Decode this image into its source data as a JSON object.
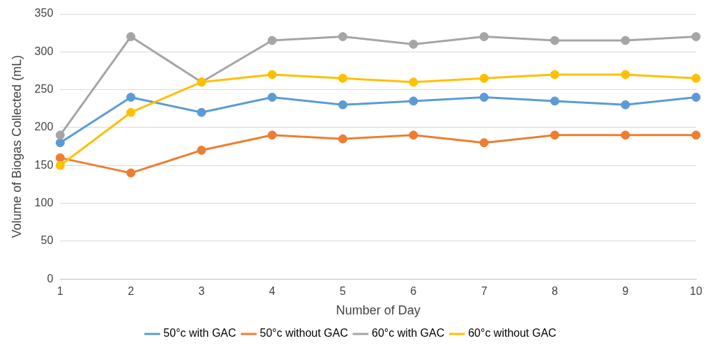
{
  "chart_data": {
    "type": "line",
    "xlabel": "Number of Day",
    "ylabel": "Volume of Biogas Collected (mL)",
    "categories": [
      "1",
      "2",
      "3",
      "4",
      "5",
      "6",
      "7",
      "8",
      "9",
      "10"
    ],
    "series": [
      {
        "name": "50°c with GAC",
        "color": "#5b9bd5",
        "values": [
          180,
          240,
          220,
          240,
          230,
          235,
          240,
          235,
          230,
          240
        ]
      },
      {
        "name": "50°c without GAC",
        "color": "#ed7d31",
        "values": [
          160,
          140,
          170,
          190,
          185,
          190,
          180,
          190,
          190,
          190
        ]
      },
      {
        "name": "60°c with GAC",
        "color": "#a5a5a5",
        "values": [
          190,
          320,
          260,
          315,
          320,
          310,
          320,
          315,
          315,
          320
        ]
      },
      {
        "name": "60°c without GAC",
        "color": "#ffc000",
        "values": [
          150,
          220,
          260,
          270,
          265,
          260,
          265,
          270,
          270,
          265
        ]
      }
    ],
    "ylim": [
      0,
      350
    ],
    "yticks": [
      0,
      50,
      100,
      150,
      200,
      250,
      300,
      350
    ],
    "grid": "y",
    "legend": "bottom",
    "marker": "circle",
    "line_style": "solid"
  }
}
